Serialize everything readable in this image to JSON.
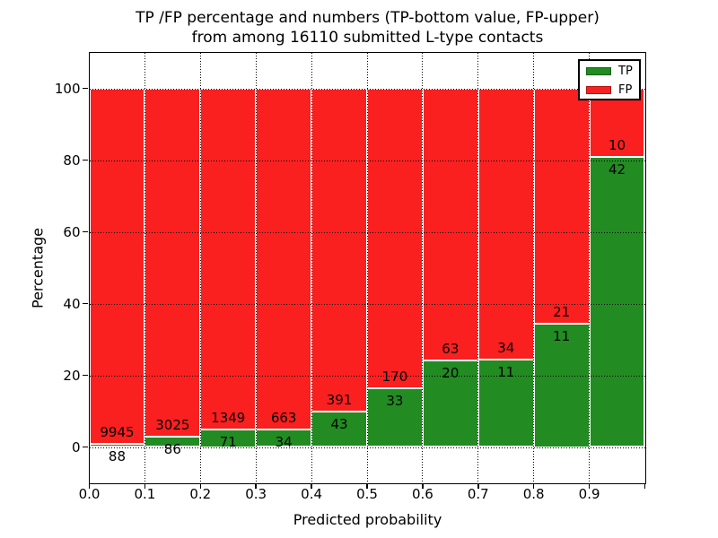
{
  "figure": {
    "title_line1": "TP /FP percentage and numbers (TP-bottom value, FP-upper)",
    "title_line2": "from among 16110 submitted L-type contacts",
    "xlabel": "Predicted probability",
    "ylabel": "Percentage"
  },
  "legend": {
    "items": [
      {
        "label": "TP",
        "color": "#228b22"
      },
      {
        "label": "FP",
        "color": "#fa2020"
      }
    ]
  },
  "chart_data": {
    "type": "bar",
    "variant": "stacked-normalized-100pct",
    "title": "TP /FP percentage and numbers (TP-bottom value, FP-upper)\nfrom among 16110 submitted L-type contacts",
    "xlabel": "Predicted probability",
    "ylabel": "Percentage",
    "xlim": [
      0.0,
      1.0
    ],
    "ylim": [
      -10,
      110
    ],
    "bin_width": 0.1,
    "grid": "dotted-black",
    "legend_position": "upper-right",
    "bar_edge_color": "#ffffff",
    "total_submitted_contacts": 16110,
    "categories": [
      "0.0-0.1",
      "0.1-0.2",
      "0.2-0.3",
      "0.3-0.4",
      "0.4-0.5",
      "0.5-0.6",
      "0.6-0.7",
      "0.7-0.8",
      "0.8-0.9",
      "0.9-1.0"
    ],
    "x_tick_labels": [
      "0.0",
      "0.1",
      "0.2",
      "0.3",
      "0.4",
      "0.5",
      "0.6",
      "0.7",
      "0.8",
      "0.9"
    ],
    "y_ticks": [
      0,
      20,
      40,
      60,
      80,
      100
    ],
    "series": [
      {
        "name": "TP",
        "color": "#228b22",
        "counts": [
          88,
          86,
          71,
          34,
          43,
          33,
          20,
          11,
          11,
          42
        ]
      },
      {
        "name": "FP",
        "color": "#fa2020",
        "counts": [
          9945,
          3025,
          1349,
          663,
          391,
          170,
          63,
          34,
          21,
          10
        ]
      }
    ],
    "tp_percent_by_bin": [
      0.88,
      2.76,
      5.0,
      4.88,
      9.91,
      16.26,
      24.1,
      24.44,
      34.38,
      80.77
    ]
  }
}
